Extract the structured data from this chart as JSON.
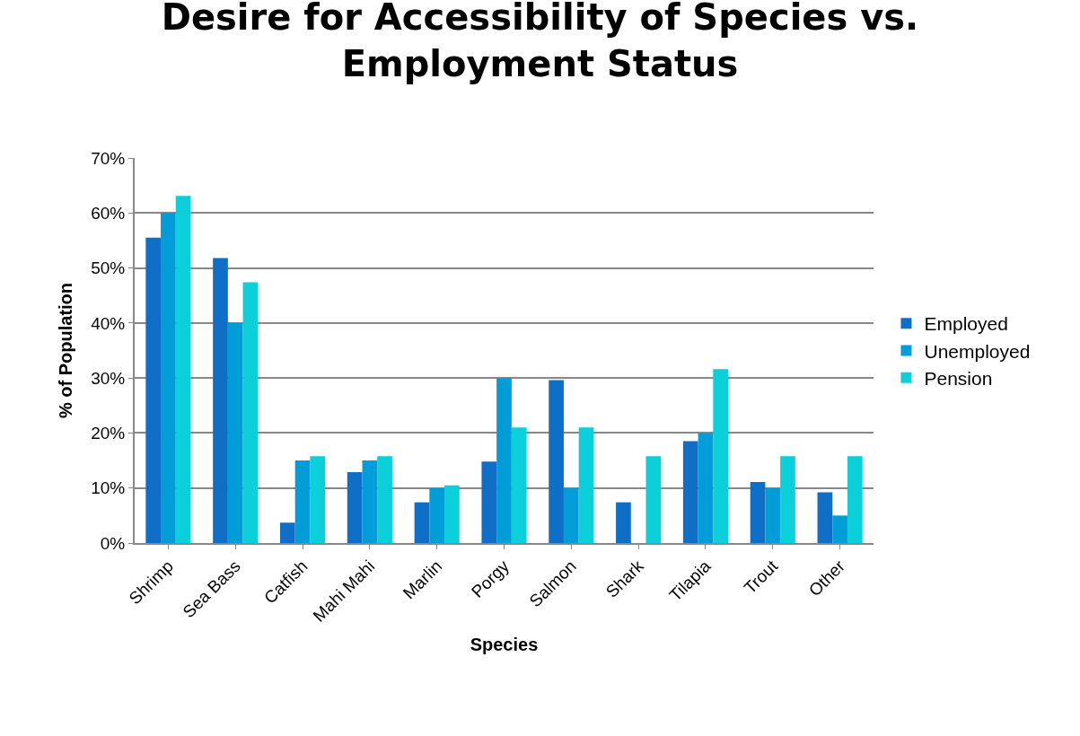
{
  "chart_data": {
    "type": "bar",
    "title": "Desire for Accessibility of Species vs.\nEmployment Status",
    "xlabel": "Species",
    "ylabel": "% of Population",
    "categories": [
      "Shrimp",
      "Sea Bass",
      "Catfish",
      "Mahi Mahi",
      "Marlin",
      "Porgy",
      "Salmon",
      "Shark",
      "Tilapia",
      "Trout",
      "Other"
    ],
    "series": [
      {
        "name": "Employed",
        "color": "#0f6fc6",
        "values": [
          55.5,
          51.8,
          3.7,
          12.9,
          7.4,
          14.8,
          29.6,
          7.4,
          18.5,
          11.1,
          9.2
        ]
      },
      {
        "name": "Unemployed",
        "color": "#009dd9",
        "values": [
          60,
          40,
          15,
          15,
          10,
          30,
          10,
          0,
          20,
          10,
          5
        ]
      },
      {
        "name": "Pension",
        "color": "#0bd0d9",
        "values": [
          63.1,
          47.4,
          15.8,
          15.8,
          10.5,
          21.0,
          21.0,
          15.8,
          31.6,
          15.8,
          15.8
        ]
      }
    ],
    "ylim": [
      0,
      70
    ],
    "yticks": [
      {
        "value": 0,
        "label": "0%"
      },
      {
        "value": 10,
        "label": "10%"
      },
      {
        "value": 20,
        "label": "20%"
      },
      {
        "value": 30,
        "label": "30%"
      },
      {
        "value": 40,
        "label": "40%"
      },
      {
        "value": 50,
        "label": "50%"
      },
      {
        "value": 60,
        "label": "60%"
      },
      {
        "value": 70,
        "label": "70%"
      }
    ],
    "grid": "y",
    "legend": "right"
  }
}
